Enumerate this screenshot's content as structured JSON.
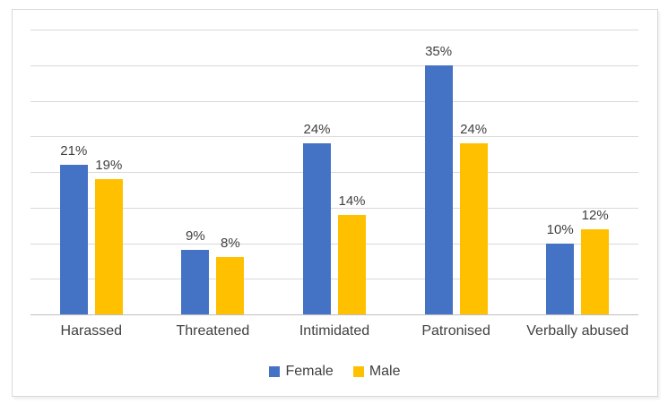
{
  "page": {
    "background": "#ffffff"
  },
  "chart_style": {
    "frame_border_color": "#d9d9d9",
    "plot_background": "#ffffff",
    "gridline_color": "#d9d9d9",
    "axis_line_color": "#bfbfbf",
    "text_color": "#404040"
  },
  "chart_data": {
    "type": "bar",
    "title": "",
    "xlabel": "",
    "ylabel": "",
    "categories": [
      "Harassed",
      "Threatened",
      "Intimidated",
      "Patronised",
      "Verbally abused"
    ],
    "series": [
      {
        "name": "Female",
        "color": "#4472C4",
        "values": [
          21,
          9,
          24,
          35,
          10
        ],
        "data_labels": [
          "21%",
          "9%",
          "24%",
          "35%",
          "10%"
        ]
      },
      {
        "name": "Male",
        "color": "#FFC000",
        "values": [
          19,
          8,
          14,
          24,
          12
        ],
        "data_labels": [
          "19%",
          "8%",
          "14%",
          "24%",
          "12%"
        ]
      }
    ],
    "ylim": [
      0,
      40
    ],
    "gridline_step": 5,
    "grid": true,
    "y_tick_labels_visible": false,
    "data_labels_visible": true,
    "legend_position": "bottom",
    "legend_entries": [
      "Female",
      "Male"
    ]
  }
}
